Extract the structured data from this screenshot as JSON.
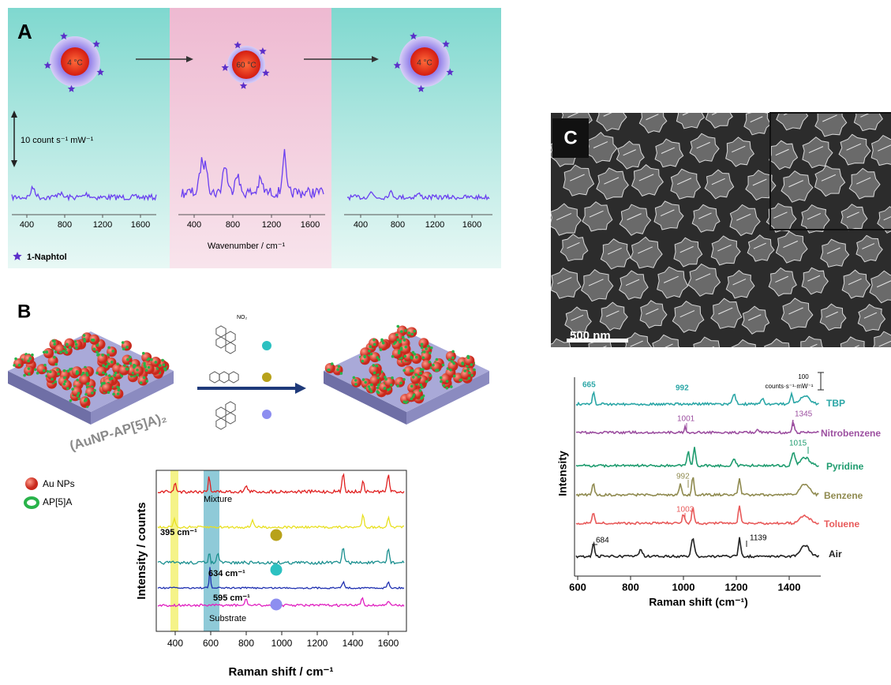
{
  "panel_a": {
    "label": "A",
    "temperatures": [
      "4 °C",
      "60 °C",
      "4 °C"
    ],
    "scale_bar": "10 count s⁻¹ mW⁻¹",
    "ticks": [
      400,
      800,
      1200,
      1600
    ],
    "x_label": "Wavenumber / cm⁻¹",
    "legend": "1-Naphtol"
  },
  "panel_b": {
    "label": "B",
    "substrate_label": "(AuNP-AP[5]A)₂",
    "nitro_group": "NO₂",
    "legend": [
      "Au NPs",
      "AP[5]A"
    ],
    "annotations": [
      "Mixture",
      "395 cm⁻¹",
      "634 cm⁻¹",
      "595 cm⁻¹",
      "Substrate"
    ],
    "y_label": "Intensity / counts",
    "ticks": [
      400,
      600,
      800,
      1000,
      1200,
      1400,
      1600
    ],
    "x_label": "Raman shift / cm⁻¹"
  },
  "panel_c": {
    "label": "C",
    "scale_bar": "500 nm",
    "series": [
      "TBP",
      "Nitrobenzene",
      "Pyridine",
      "Benzene",
      "Toluene",
      "Air"
    ],
    "peaks": [
      665,
      992,
      1001,
      1345,
      1015,
      992,
      1003,
      684,
      1139
    ],
    "intensity_scale": [
      100,
      "counts·s⁻¹·mW⁻¹"
    ],
    "y_label": "Intensity",
    "ticks": [
      600,
      800,
      1000,
      1200,
      1400
    ],
    "x_label": "Raman shift (cm⁻¹)"
  }
}
